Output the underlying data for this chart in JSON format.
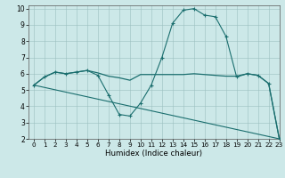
{
  "xlabel": "Humidex (Indice chaleur)",
  "xlim": [
    -0.5,
    23
  ],
  "ylim": [
    2,
    10.2
  ],
  "yticks": [
    2,
    3,
    4,
    5,
    6,
    7,
    8,
    9,
    10
  ],
  "xticks": [
    0,
    1,
    2,
    3,
    4,
    5,
    6,
    7,
    8,
    9,
    10,
    11,
    12,
    13,
    14,
    15,
    16,
    17,
    18,
    19,
    20,
    21,
    22,
    23
  ],
  "bg_color": "#cce8e8",
  "line_color": "#1a6e6e",
  "line1_x": [
    0,
    1,
    2,
    3,
    4,
    5,
    6,
    7,
    8,
    9,
    10,
    11,
    12,
    13,
    14,
    15,
    16,
    17,
    18,
    19,
    20,
    21,
    22,
    23
  ],
  "line1_y": [
    5.3,
    5.8,
    6.1,
    6.0,
    6.1,
    6.2,
    5.9,
    4.7,
    3.5,
    3.4,
    4.2,
    5.3,
    7.0,
    9.1,
    9.9,
    10.0,
    9.6,
    9.5,
    8.3,
    5.8,
    6.0,
    5.9,
    5.4,
    2.0
  ],
  "line2_x": [
    0,
    1,
    2,
    3,
    4,
    5,
    6,
    7,
    8,
    9,
    10,
    11,
    12,
    13,
    14,
    15,
    16,
    17,
    18,
    19,
    20,
    21,
    22,
    23
  ],
  "line2_y": [
    5.3,
    5.8,
    6.1,
    6.0,
    6.1,
    6.2,
    6.05,
    5.85,
    5.75,
    5.6,
    5.95,
    5.95,
    5.95,
    5.95,
    5.95,
    6.0,
    5.95,
    5.9,
    5.85,
    5.85,
    6.0,
    5.9,
    5.4,
    2.0
  ],
  "line3_x": [
    0,
    23
  ],
  "line3_y": [
    5.3,
    2.0
  ],
  "xtick_fontsize": 5.2,
  "ytick_fontsize": 5.5,
  "xlabel_fontsize": 6.2
}
